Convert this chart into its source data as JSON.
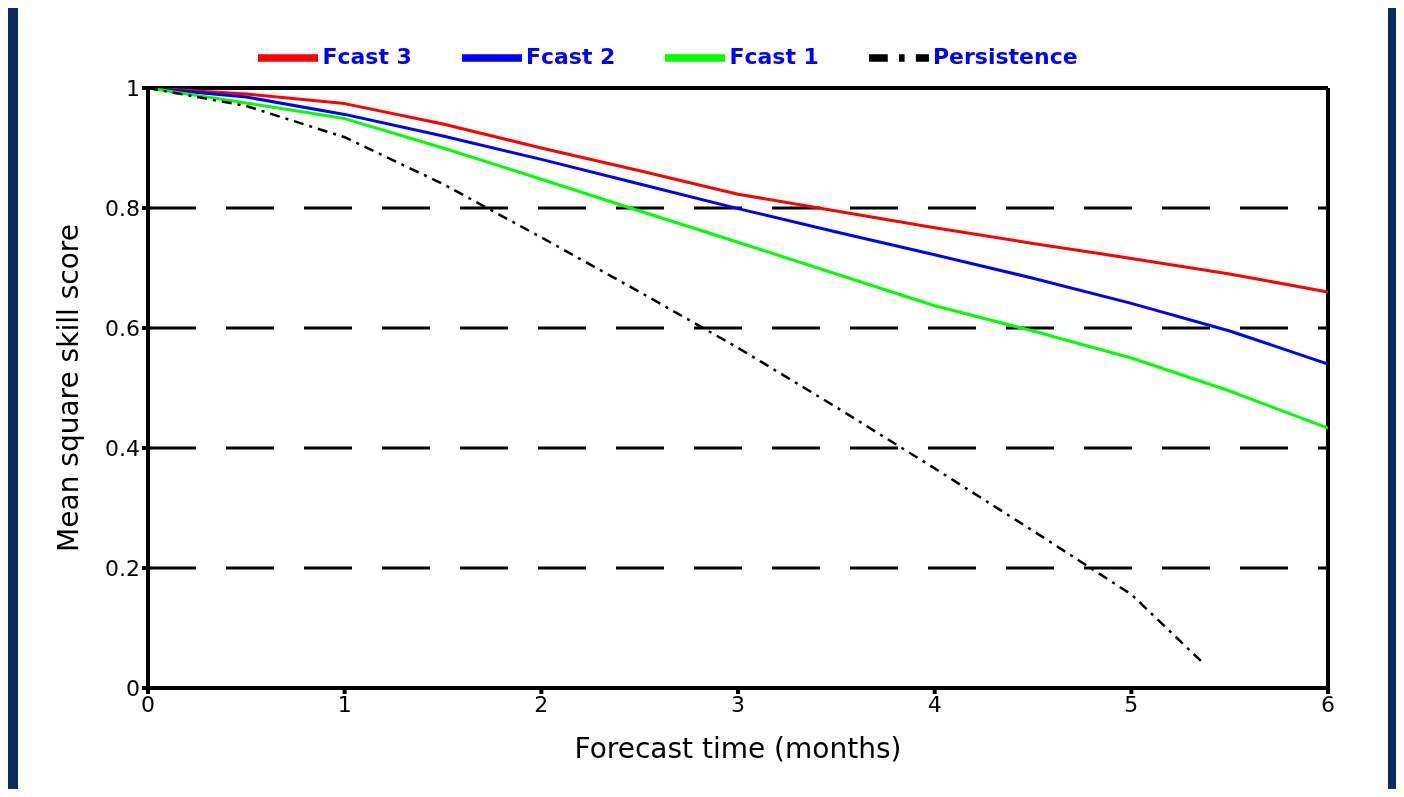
{
  "chart_data": {
    "type": "line",
    "xlabel": "Forecast time (months)",
    "ylabel": "Mean square skill score",
    "x": [
      0,
      0.5,
      1,
      1.5,
      2,
      2.5,
      3,
      3.5,
      4,
      4.5,
      5,
      5.5,
      6
    ],
    "series": [
      {
        "name": "Fcast 3",
        "color": "#ff0000",
        "values": [
          1,
          0.99,
          0.974,
          0.94,
          0.9,
          0.862,
          0.823,
          0.795,
          0.767,
          0.741,
          0.716,
          0.69,
          0.66
        ]
      },
      {
        "name": "Fcast 2",
        "color": "#0000ff",
        "values": [
          1,
          0.985,
          0.956,
          0.92,
          0.881,
          0.84,
          0.799,
          0.76,
          0.722,
          0.683,
          0.641,
          0.595,
          0.54
        ]
      },
      {
        "name": "Fcast 1",
        "color": "#00ff00",
        "values": [
          1,
          0.975,
          0.949,
          0.9,
          0.848,
          0.795,
          0.743,
          0.69,
          0.637,
          0.595,
          0.55,
          0.495,
          0.433
        ]
      },
      {
        "name": "Persistence",
        "color": "#000000",
        "line_style": "dashed",
        "x": [
          0,
          0.5,
          1,
          1.5,
          2,
          2.5,
          3,
          3.5,
          4,
          4.5,
          5,
          5.37
        ],
        "values": [
          1,
          0.97,
          0.918,
          0.84,
          0.751,
          0.66,
          0.567,
          0.468,
          0.366,
          0.262,
          0.156,
          0.04
        ]
      }
    ],
    "xlim": [
      0,
      6
    ],
    "xticks": [
      0,
      1,
      2,
      3,
      4,
      5,
      6
    ],
    "ylim": [
      0,
      1
    ],
    "yticks": [
      0,
      0.2,
      0.4,
      0.6,
      0.8,
      1
    ],
    "grid": "y",
    "legend": "top",
    "line_style": "solid",
    "marker": "none"
  }
}
